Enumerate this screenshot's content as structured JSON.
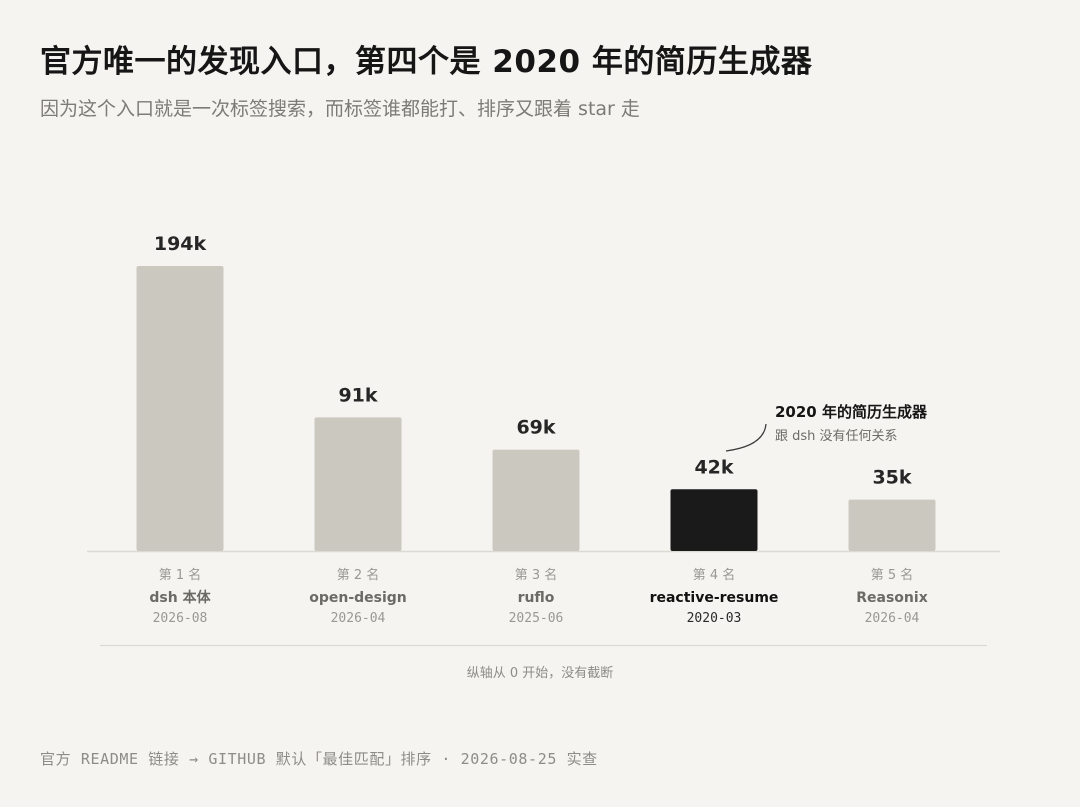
{
  "title": "官方唯一的发现入口，第四个是 2020 年的简历生成器",
  "subtitle": "因为这个入口就是一次标签搜索，而标签谁都能打、排序又跟着 star 走",
  "chart_data": {
    "type": "bar",
    "categories": [
      "dsh 本体",
      "open-design",
      "ruflo",
      "reactive-resume",
      "Reasonix"
    ],
    "values": [
      194,
      91,
      69,
      42,
      35
    ],
    "value_labels": [
      "194k",
      "91k",
      "69k",
      "42k",
      "35k"
    ],
    "ranks": [
      "第 1 名",
      "第 2 名",
      "第 3 名",
      "第 4 名",
      "第 5 名"
    ],
    "dates": [
      "2026-08",
      "2026-04",
      "2025-06",
      "2020-03",
      "2026-04"
    ],
    "highlight_index": 3,
    "ylim": [
      0,
      194
    ],
    "grid": false,
    "colors": {
      "bar": "#cbc9bf",
      "highlight": "#1a1a1a",
      "baseline": "#dcdad4"
    },
    "annotation": {
      "title": "2020 年的简历生成器",
      "subtitle": "跟 dsh 没有任何关系"
    },
    "note": "纵轴从 0 开始，没有截断"
  },
  "footer": "官方 README 链接 → GITHUB 默认「最佳匹配」排序 · 2026-08-25 实查"
}
